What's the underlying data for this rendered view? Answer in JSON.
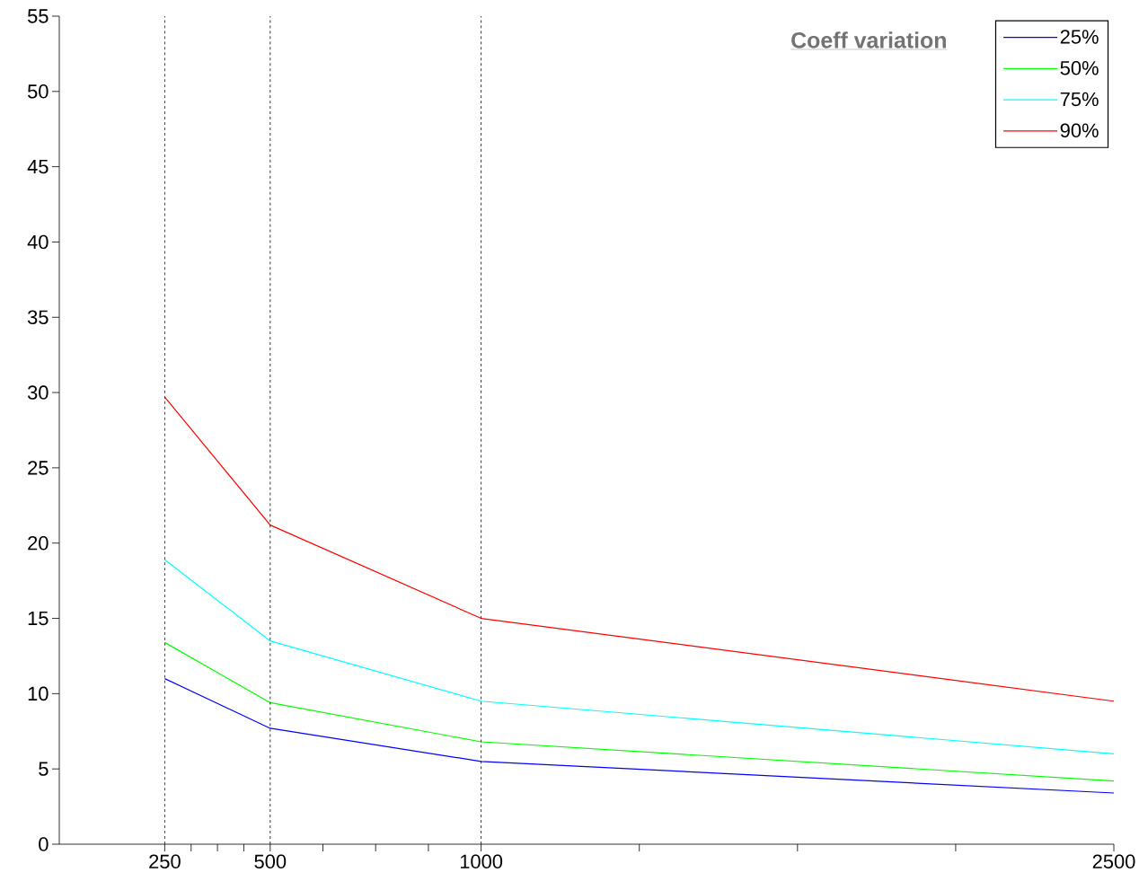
{
  "chart_data": {
    "type": "line",
    "legend_title": "Coeff variation",
    "legend": "top right",
    "line_style": "solid",
    "x": [
      250,
      500,
      1000,
      2500
    ],
    "series": [
      {
        "name": "25%",
        "color": "#0000ff",
        "values": [
          11.0,
          7.7,
          5.5,
          3.4
        ]
      },
      {
        "name": "50%",
        "color": "#00ff00",
        "values": [
          13.4,
          9.4,
          6.8,
          4.2
        ]
      },
      {
        "name": "75%",
        "color": "#00ffff",
        "values": [
          18.9,
          13.5,
          9.5,
          6.0
        ]
      },
      {
        "name": "90%",
        "color": "#ff0000",
        "values": [
          29.7,
          21.2,
          15.0,
          9.5
        ]
      }
    ],
    "xlim": [
      0,
      2500
    ],
    "xticks": [
      250,
      {
        "value": 312.5,
        "label": null
      },
      {
        "value": 375,
        "label": null
      },
      {
        "value": 437.5,
        "label": null
      },
      500,
      {
        "value": 625,
        "label": null
      },
      {
        "value": 750,
        "label": null
      },
      {
        "value": 875,
        "label": null
      },
      1000,
      {
        "value": 1375,
        "label": null
      },
      {
        "value": 1750,
        "label": null
      },
      {
        "value": 2125,
        "label": null
      },
      2500
    ],
    "ylim": [
      0,
      55
    ],
    "yticks": [
      0,
      5,
      10,
      15,
      20,
      25,
      30,
      35,
      40,
      45,
      50,
      55
    ],
    "ref_lines": [
      {
        "axis": "x",
        "value": 250,
        "color": "#000000",
        "line_style": "dashed"
      },
      {
        "axis": "x",
        "value": 500,
        "color": "#000000",
        "line_style": "dashed"
      },
      {
        "axis": "x",
        "value": 1000,
        "color": "#000000",
        "line_style": "dashed"
      }
    ]
  }
}
